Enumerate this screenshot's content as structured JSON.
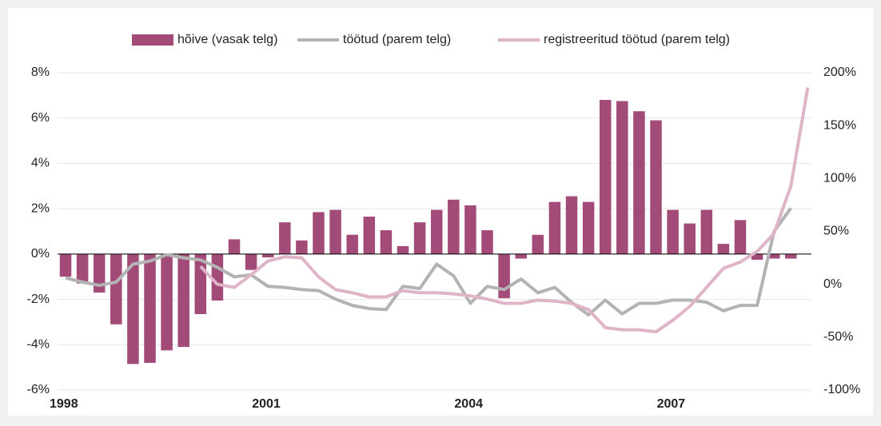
{
  "chart_data": {
    "type": "bar_line",
    "categories": [
      "1998",
      null,
      null,
      null,
      null,
      null,
      null,
      null,
      null,
      null,
      null,
      null,
      "2001",
      null,
      null,
      null,
      null,
      null,
      null,
      null,
      null,
      null,
      null,
      null,
      "2004",
      null,
      null,
      null,
      null,
      null,
      null,
      null,
      null,
      null,
      null,
      null,
      "2007",
      null,
      null,
      null,
      null,
      null,
      null,
      null,
      null
    ],
    "series": [
      {
        "name": "hõive (vasak telg)",
        "color": "#a24a78",
        "kind": "bar",
        "axis": "y",
        "values": [
          -1.0,
          -1.3,
          -1.7,
          -3.1,
          -4.85,
          -4.8,
          -4.25,
          -4.1,
          -2.65,
          -2.05,
          0.65,
          -0.7,
          -0.15,
          1.4,
          0.6,
          1.85,
          1.95,
          0.85,
          1.65,
          1.05,
          0.35,
          1.4,
          1.95,
          2.4,
          2.15,
          1.05,
          -1.95,
          -0.2,
          0.85,
          2.3,
          2.55,
          2.3,
          6.8,
          6.75,
          6.3,
          5.9,
          1.95,
          1.35,
          1.95,
          0.45,
          1.5,
          -0.25,
          -0.2,
          -0.2,
          null
        ]
      },
      {
        "name": "töötud (parem telg)",
        "color": "#b3b3b3",
        "kind": "line",
        "axis": "y2",
        "values": [
          6,
          2,
          -1,
          2,
          19,
          22,
          28,
          25,
          23,
          16,
          7,
          9,
          -2,
          -3,
          -5,
          -6,
          -14,
          -20,
          -23,
          -24,
          -2,
          -4,
          19,
          8,
          -18,
          -2,
          -5,
          5,
          -8,
          -3,
          -17,
          -29,
          -15,
          -28,
          -18,
          -18,
          -15,
          -15,
          -17,
          -25,
          -20,
          -20,
          50,
          72,
          null
        ]
      },
      {
        "name": "registreeritud töötud (parem telg)",
        "color": "#e0b4c8",
        "kind": "line",
        "axis": "y2",
        "values": [
          null,
          null,
          null,
          null,
          null,
          null,
          null,
          null,
          17,
          0,
          -3,
          9,
          22,
          26,
          25,
          7,
          -5,
          -8,
          -12,
          -12,
          -6,
          -8,
          -8,
          -9,
          -11,
          -14,
          -18,
          -18,
          -15,
          -16,
          -18,
          -24,
          -41,
          -43,
          -43,
          -45,
          -34,
          -21,
          -3,
          15,
          21,
          31,
          48,
          93,
          186
        ]
      }
    ],
    "ylim": [
      -6,
      8
    ],
    "yticks": [
      {
        "value": -6,
        "label": "-6%"
      },
      {
        "value": -4,
        "label": "-4%"
      },
      {
        "value": -2,
        "label": "-2%"
      },
      {
        "value": 0,
        "label": "0%"
      },
      {
        "value": 2,
        "label": "2%"
      },
      {
        "value": 4,
        "label": "4%"
      },
      {
        "value": 6,
        "label": "6%"
      },
      {
        "value": 8,
        "label": "8%"
      }
    ],
    "y2lim": [
      -100,
      200
    ],
    "y2ticks": [
      {
        "value": -100,
        "label": "-100%"
      },
      {
        "value": -50,
        "label": "-50%"
      },
      {
        "value": 0,
        "label": "0%"
      },
      {
        "value": 50,
        "label": "50%"
      },
      {
        "value": 100,
        "label": "100%"
      },
      {
        "value": 150,
        "label": "150%"
      },
      {
        "value": 200,
        "label": "200%"
      }
    ],
    "grid": true,
    "legend": "top"
  }
}
